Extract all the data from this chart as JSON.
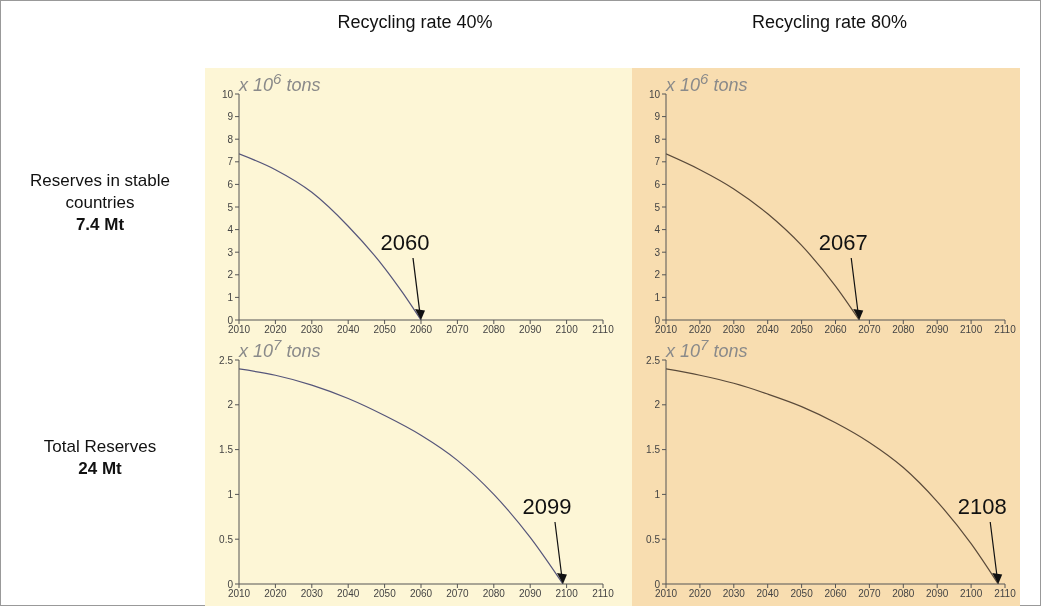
{
  "chart_data": [
    {
      "type": "line",
      "title": "Recycling rate 40%",
      "ylabel": "x 10$^{6}$ tons",
      "annotations": [
        "Reserves in stable countries",
        "7.4 Mt",
        {
          "text": "2060",
          "x": 2060,
          "y": 0
        }
      ],
      "series": [
        {
          "color": "#55557a",
          "x": [
            2010,
            2020,
            2030,
            2040,
            2050,
            2055,
            2060
          ],
          "values": [
            7.35,
            6.65,
            5.65,
            4.15,
            2.3,
            1.2,
            0
          ]
        }
      ],
      "xlim": [
        2010,
        2110
      ],
      "xticks": [
        2010,
        2020,
        2030,
        2040,
        2050,
        2060,
        2070,
        2080,
        2090,
        2100,
        2110
      ],
      "ylim": [
        0,
        10
      ],
      "yticks": [
        0,
        1,
        2,
        3,
        4,
        5,
        6,
        7,
        8,
        9,
        10
      ],
      "marker": "none",
      "legend": false,
      "grid": false
    },
    {
      "type": "line",
      "title": "Recycling rate 80%",
      "ylabel": "x 10$^{6}$ tons",
      "annotations": [
        {
          "text": "2067",
          "x": 2067,
          "y": 0
        }
      ],
      "series": [
        {
          "color": "#5a4a3a",
          "x": [
            2010,
            2020,
            2030,
            2040,
            2050,
            2060,
            2067
          ],
          "values": [
            7.35,
            6.65,
            5.8,
            4.7,
            3.3,
            1.5,
            0
          ]
        }
      ],
      "xlim": [
        2010,
        2110
      ],
      "xticks": [
        2010,
        2020,
        2030,
        2040,
        2050,
        2060,
        2070,
        2080,
        2090,
        2100,
        2110
      ],
      "ylim": [
        0,
        10
      ],
      "yticks": [
        0,
        1,
        2,
        3,
        4,
        5,
        6,
        7,
        8,
        9,
        10
      ],
      "marker": "none",
      "legend": false,
      "grid": false
    },
    {
      "type": "line",
      "ylabel": "x 10$^{7}$ tons",
      "annotations": [
        "Total Reserves",
        "24 Mt",
        {
          "text": "2099",
          "x": 2099,
          "y": 0
        }
      ],
      "series": [
        {
          "color": "#55557a",
          "x": [
            2010,
            2020,
            2030,
            2040,
            2050,
            2060,
            2070,
            2080,
            2090,
            2099
          ],
          "values": [
            2.4,
            2.33,
            2.22,
            2.07,
            1.88,
            1.66,
            1.38,
            1.0,
            0.52,
            0
          ]
        }
      ],
      "xlim": [
        2010,
        2110
      ],
      "xticks": [
        2010,
        2020,
        2030,
        2040,
        2050,
        2060,
        2070,
        2080,
        2090,
        2100,
        2110
      ],
      "ylim": [
        0,
        2.5
      ],
      "yticks": [
        0,
        0.5,
        1,
        1.5,
        2,
        2.5
      ],
      "marker": "none",
      "legend": false,
      "grid": false
    },
    {
      "type": "line",
      "ylabel": "x 10$^{7}$ tons",
      "annotations": [
        {
          "text": "2108",
          "x": 2108,
          "y": 0
        }
      ],
      "series": [
        {
          "color": "#5a4a3a",
          "x": [
            2010,
            2020,
            2030,
            2040,
            2050,
            2060,
            2070,
            2080,
            2090,
            2100,
            2108
          ],
          "values": [
            2.4,
            2.33,
            2.24,
            2.12,
            1.98,
            1.8,
            1.58,
            1.3,
            0.92,
            0.45,
            0
          ]
        }
      ],
      "xlim": [
        2010,
        2110
      ],
      "xticks": [
        2010,
        2020,
        2030,
        2040,
        2050,
        2060,
        2070,
        2080,
        2090,
        2100,
        2110
      ],
      "ylim": [
        0,
        2.5
      ],
      "yticks": [
        0,
        0.5,
        1,
        1.5,
        2,
        2.5
      ],
      "marker": "none",
      "legend": false,
      "grid": false
    }
  ]
}
